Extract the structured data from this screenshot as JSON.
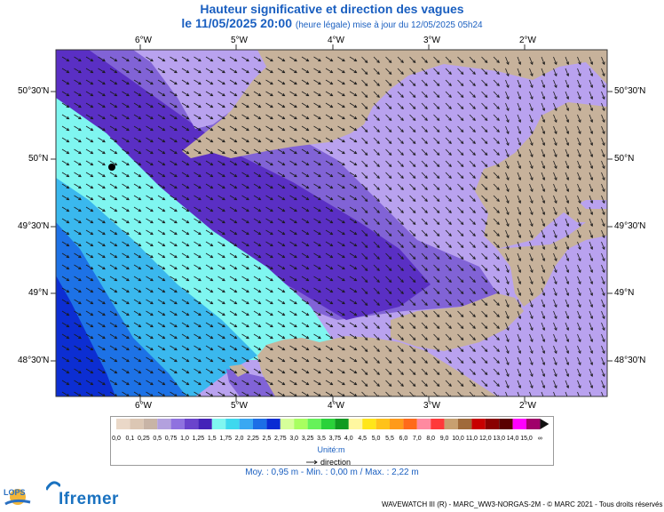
{
  "title": "Hauteur significative et direction des vagues",
  "subtitle_date": "le 11/05/2025 20:00",
  "subtitle_note": "(heure légale) mise à jour du 12/05/2025 05h24",
  "lon_labels": [
    "6°W",
    "5°W",
    "4°W",
    "3°W",
    "2°W"
  ],
  "lat_labels": [
    "50°30'N",
    "50°N",
    "49°30'N",
    "49°N",
    "48°30'N"
  ],
  "legend": {
    "values": [
      "0,0",
      "0,1",
      "0,25",
      "0,5",
      "0,75",
      "1,0",
      "1,25",
      "1,5",
      "1,75",
      "2,0",
      "2,25",
      "2,5",
      "2,75",
      "3,0",
      "3,25",
      "3,5",
      "3,75",
      "4,0",
      "4,5",
      "5,0",
      "5,5",
      "6,0",
      "7,0",
      "8,0",
      "9,0",
      "10,0",
      "11,0",
      "12,0",
      "13,0",
      "14,0",
      "15,0",
      "∞"
    ],
    "colors": [
      "#ead8c8",
      "#dcc7b4",
      "#c8b4a6",
      "#b3a1de",
      "#8f72df",
      "#6a44cc",
      "#4422b8",
      "#7ff6f0",
      "#3ed8ee",
      "#3aa8f2",
      "#1d6ee6",
      "#0a2cd4",
      "#d6ff9a",
      "#a8ff60",
      "#66f25a",
      "#2ad23a",
      "#109a20",
      "#fff7a0",
      "#ffe61a",
      "#ffc21a",
      "#ff9a1a",
      "#ff6a1a",
      "#ff8aa0",
      "#ff3a3a",
      "#c8a070",
      "#a06a3a",
      "#c80000",
      "#8a0000",
      "#5a0000",
      "#ff00ff",
      "#a0006a"
    ],
    "unit": "Unité:m",
    "direction_label": "direction"
  },
  "stats": "Moy. : 0,95 m   -   Min. : 0,00 m / Max. : 2,22 m",
  "footer": "WAVEWATCH III (R) - MARC_WW3-NORGAS-2M - © MARC 2021 - Tous droits réservés",
  "logos": {
    "ifremer": "Ifremer",
    "lops": "LOPS"
  },
  "colors": {
    "land": "#c7b29b",
    "sea_lavender": "#b9a2ef",
    "sea_violet": "#8163d6",
    "sea_indigo": "#5a2fc4",
    "sea_cyan": "#7ff6f0",
    "sea_sky": "#3ab8ee",
    "sea_blue": "#1d72e6",
    "sea_deep": "#0c2ed2"
  }
}
